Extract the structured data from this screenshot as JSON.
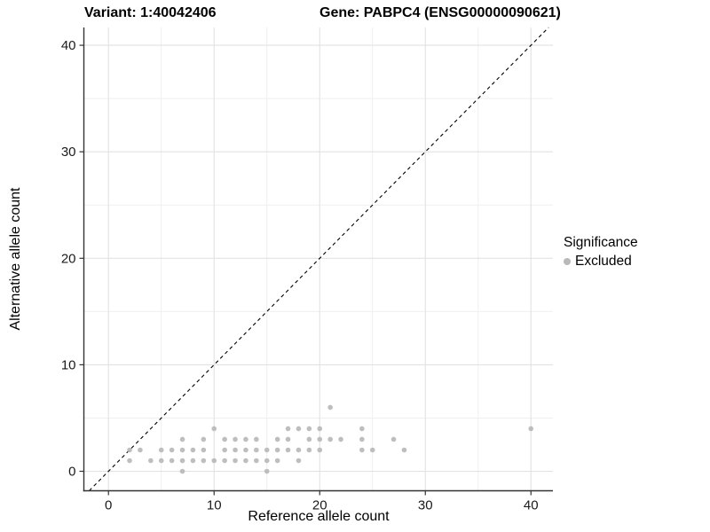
{
  "header": {
    "variant_title": "Variant: 1:40042406",
    "gene_title": "Gene: PABPC4 (ENSG00000090621)"
  },
  "legend": {
    "title": "Significance",
    "items": [
      {
        "label": "Excluded",
        "marker": "circle",
        "color": "#b9b9b9"
      }
    ]
  },
  "chart_data": {
    "type": "scatter",
    "title": "Variant: 1:40042406 — Gene: PABPC4 (ENSG00000090621)",
    "xlabel": "Reference allele count",
    "ylabel": "Alternative allele count",
    "xlim": [
      -2.33,
      42.08
    ],
    "ylim": [
      -1.83,
      41.67
    ],
    "x_ticks": [
      0,
      10,
      20,
      30,
      40
    ],
    "y_ticks": [
      0,
      10,
      20,
      30,
      40
    ],
    "x_minor_ticks": [
      5,
      15,
      25,
      35
    ],
    "y_minor_ticks": [
      5,
      15,
      25,
      35
    ],
    "grid": true,
    "legend_position": "right",
    "identity_line": {
      "slope": 1,
      "intercept": 0,
      "style": "dashed",
      "color": "#000000"
    },
    "colors": {
      "background": "#ffffff",
      "axis_line": "#333333",
      "tick_label": "#1a1a1a",
      "grid_major": "#e2e2e2",
      "grid_minor": "#efefef"
    },
    "point_radius": 2.8,
    "series": [
      {
        "name": "Excluded",
        "color": "#b9b9b9",
        "points": [
          [
            2,
            1
          ],
          [
            2,
            2
          ],
          [
            3,
            2
          ],
          [
            4,
            1
          ],
          [
            5,
            1
          ],
          [
            5,
            2
          ],
          [
            6,
            1
          ],
          [
            6,
            2
          ],
          [
            7,
            0
          ],
          [
            7,
            1
          ],
          [
            7,
            2
          ],
          [
            7,
            3
          ],
          [
            8,
            1
          ],
          [
            8,
            2
          ],
          [
            9,
            1
          ],
          [
            9,
            2
          ],
          [
            9,
            3
          ],
          [
            10,
            1
          ],
          [
            10,
            4
          ],
          [
            11,
            1
          ],
          [
            11,
            2
          ],
          [
            11,
            3
          ],
          [
            12,
            1
          ],
          [
            12,
            2
          ],
          [
            12,
            3
          ],
          [
            13,
            1
          ],
          [
            13,
            2
          ],
          [
            13,
            3
          ],
          [
            14,
            1
          ],
          [
            14,
            2
          ],
          [
            14,
            3
          ],
          [
            15,
            0
          ],
          [
            15,
            1
          ],
          [
            15,
            2
          ],
          [
            16,
            1
          ],
          [
            16,
            2
          ],
          [
            16,
            3
          ],
          [
            17,
            2
          ],
          [
            17,
            3
          ],
          [
            17,
            4
          ],
          [
            18,
            1
          ],
          [
            18,
            2
          ],
          [
            18,
            4
          ],
          [
            19,
            2
          ],
          [
            19,
            3
          ],
          [
            19,
            4
          ],
          [
            20,
            2
          ],
          [
            20,
            3
          ],
          [
            20,
            4
          ],
          [
            21,
            3
          ],
          [
            21,
            6
          ],
          [
            22,
            3
          ],
          [
            24,
            2
          ],
          [
            24,
            3
          ],
          [
            24,
            4
          ],
          [
            25,
            2
          ],
          [
            27,
            3
          ],
          [
            28,
            2
          ],
          [
            40,
            4
          ]
        ]
      }
    ]
  }
}
